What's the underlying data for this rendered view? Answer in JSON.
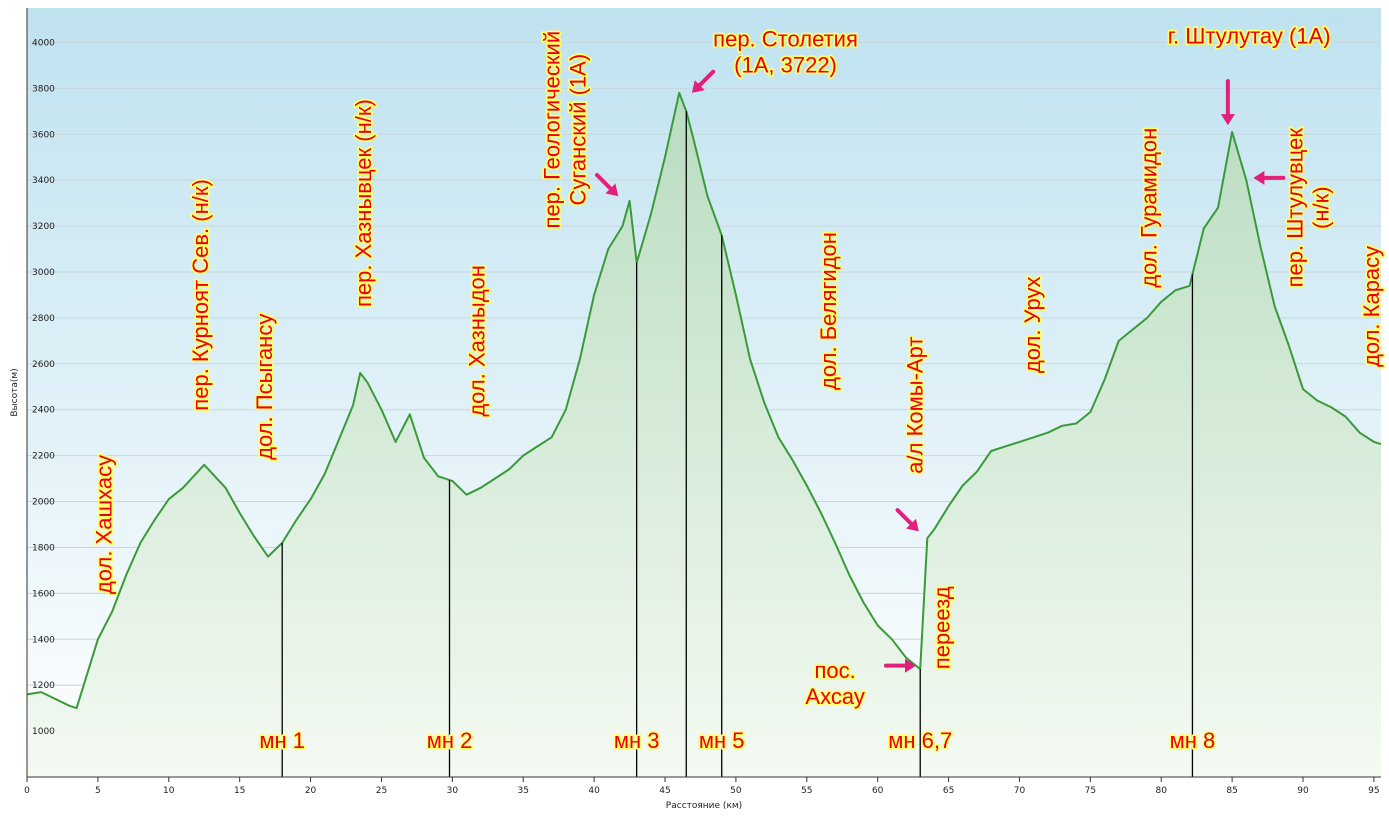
{
  "chart_data": {
    "type": "area",
    "xlabel": "Расстояние (км)",
    "ylabel": "Высота(м)",
    "xlim": [
      0,
      95.5
    ],
    "ylim": [
      800,
      4150
    ],
    "x_ticks": [
      0,
      5,
      10,
      15,
      20,
      25,
      30,
      35,
      40,
      45,
      50,
      55,
      60,
      65,
      70,
      75,
      80,
      85,
      90,
      95
    ],
    "y_ticks": [
      1000,
      1200,
      1400,
      1600,
      1800,
      2000,
      2200,
      2400,
      2600,
      2800,
      3000,
      3200,
      3400,
      3600,
      3800,
      4000
    ],
    "grid": "horizontal",
    "colors": {
      "line": "#3a9a3a",
      "fill_top": "#b9dcc0",
      "fill_bottom": "#f4faf2",
      "bg_top": "#bfe2f0",
      "bg_bottom": "#ffffff",
      "annotation": "#e8001c",
      "annotation_outline": "#ffff66",
      "arrow": "#e0207a",
      "camp_line": "#000000"
    },
    "series": [
      {
        "x": [
          0,
          1,
          2,
          3,
          3.5,
          4,
          5,
          6,
          7,
          8,
          9,
          10,
          11,
          12.5,
          14,
          15,
          16,
          17,
          18,
          19,
          20,
          21,
          22,
          23,
          23.5,
          24,
          25,
          26,
          27,
          28,
          29,
          30,
          31,
          32,
          33,
          34,
          35,
          36,
          37,
          38,
          39,
          40,
          41,
          42,
          42.5,
          43,
          44,
          45,
          46,
          46.5,
          47,
          48,
          49,
          50,
          51,
          52,
          53,
          54,
          55,
          56,
          57,
          58,
          59,
          60,
          61,
          62,
          63,
          63.5,
          64,
          65,
          66,
          67,
          68,
          69,
          70,
          71,
          72,
          73,
          74,
          75,
          76,
          77,
          78,
          79,
          80,
          81,
          82,
          83,
          84,
          85,
          86,
          87,
          88,
          89,
          90,
          91,
          92,
          93,
          94,
          95,
          95.5
        ],
        "y": [
          1160,
          1170,
          1140,
          1110,
          1100,
          1200,
          1400,
          1520,
          1680,
          1820,
          1920,
          2010,
          2060,
          2160,
          2060,
          1950,
          1850,
          1760,
          1820,
          1920,
          2010,
          2120,
          2270,
          2420,
          2560,
          2520,
          2400,
          2260,
          2380,
          2190,
          2110,
          2090,
          2030,
          2060,
          2100,
          2140,
          2200,
          2240,
          2280,
          2400,
          2620,
          2900,
          3100,
          3200,
          3310,
          3040,
          3250,
          3500,
          3780,
          3700,
          3580,
          3330,
          3160,
          2900,
          2620,
          2430,
          2280,
          2180,
          2070,
          1950,
          1820,
          1680,
          1560,
          1460,
          1400,
          1320,
          1270,
          1840,
          1880,
          1980,
          2070,
          2130,
          2220,
          2240,
          2260,
          2280,
          2300,
          2330,
          2340,
          2390,
          2530,
          2700,
          2750,
          2800,
          2870,
          2920,
          2940,
          3190,
          3280,
          3610,
          3400,
          3110,
          2850,
          2680,
          2490,
          2440,
          2410,
          2370,
          2300,
          2260,
          2250
        ]
      }
    ],
    "camps": [
      {
        "x": 18,
        "label": "мн 1"
      },
      {
        "x": 29.8,
        "label": "мн 2"
      },
      {
        "x": 43,
        "label": "мн 3"
      },
      {
        "x": 46.5,
        "label": ""
      },
      {
        "x": 49,
        "label": "мн 5"
      },
      {
        "x": 63,
        "label": "мн 6,7"
      },
      {
        "x": 82.2,
        "label": "мн 8"
      }
    ],
    "annotations": [
      {
        "lines": [
          "дол. Хашхасу"
        ],
        "vertical": true,
        "x": 5.4,
        "y": 1900
      },
      {
        "lines": [
          "пер. Курноят Сев. (н/к)"
        ],
        "vertical": true,
        "x": 12.2,
        "y": 2900
      },
      {
        "lines": [
          "дол. Псыгансу"
        ],
        "vertical": true,
        "x": 16.7,
        "y": 2500
      },
      {
        "lines": [
          "пер. Хазнывцек (н/к)"
        ],
        "vertical": true,
        "x": 23.7,
        "y": 3300
      },
      {
        "lines": [
          "дол. Хазныдон"
        ],
        "vertical": true,
        "x": 31.7,
        "y": 2700
      },
      {
        "lines": [
          "пер. Геологический",
          "Суганский (1А)"
        ],
        "vertical": true,
        "x": 37.9,
        "y": 3620
      },
      {
        "lines": [
          "пер. Столетия",
          "(1А, 3722)"
        ],
        "vertical": false,
        "x": 53.5,
        "y": 3960
      },
      {
        "lines": [
          "дол. Белягидон"
        ],
        "vertical": true,
        "x": 56.5,
        "y": 2830
      },
      {
        "lines": [
          "а/л Комы-Арт"
        ],
        "vertical": true,
        "x": 62.6,
        "y": 2420
      },
      {
        "lines": [
          "переезд"
        ],
        "vertical": true,
        "x": 64.5,
        "y": 1450
      },
      {
        "lines": [
          "пос.",
          "Ахсау"
        ],
        "vertical": false,
        "x": 57,
        "y": 1210
      },
      {
        "lines": [
          "дол. Урух"
        ],
        "vertical": true,
        "x": 70.9,
        "y": 2770
      },
      {
        "lines": [
          "дол. Гурамидон"
        ],
        "vertical": true,
        "x": 79.1,
        "y": 3280
      },
      {
        "lines": [
          "г. Штулутау (1А)"
        ],
        "vertical": false,
        "x": 86.2,
        "y": 4030
      },
      {
        "lines": [
          "пер. Штулувцек",
          "(н/к)"
        ],
        "vertical": true,
        "x": 90.3,
        "y": 3280
      },
      {
        "lines": [
          "дол. Карасу"
        ],
        "vertical": true,
        "x": 94.8,
        "y": 2850
      }
    ],
    "arrows": [
      {
        "x": 46.9,
        "y": 3780,
        "dir": "down-left"
      },
      {
        "x": 41.7,
        "y": 3330,
        "dir": "down-right"
      },
      {
        "x": 84.7,
        "y": 3640,
        "dir": "down"
      },
      {
        "x": 86.5,
        "y": 3410,
        "dir": "left"
      },
      {
        "x": 62.9,
        "y": 1870,
        "dir": "down-right"
      },
      {
        "x": 62.7,
        "y": 1285,
        "dir": "right"
      }
    ]
  }
}
